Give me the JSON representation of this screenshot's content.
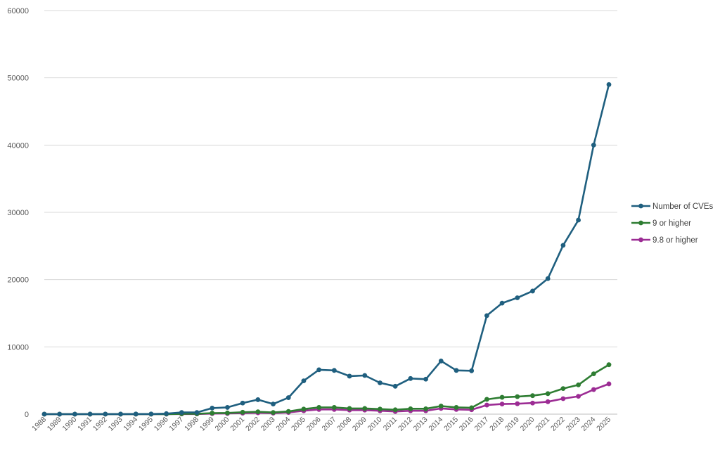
{
  "chart_data": {
    "type": "line",
    "title": "",
    "xlabel": "",
    "ylabel": "",
    "ylim": [
      0,
      60000
    ],
    "yticks": [
      0,
      10000,
      20000,
      30000,
      40000,
      50000,
      60000
    ],
    "grid": true,
    "legend_position": "right",
    "categories": [
      "1988",
      "1989",
      "1990",
      "1991",
      "1992",
      "1993",
      "1994",
      "1995",
      "1996",
      "1997",
      "1998",
      "1999",
      "2000",
      "2001",
      "2002",
      "2003",
      "2004",
      "2005",
      "2006",
      "2007",
      "2008",
      "2009",
      "2010",
      "2011",
      "2012",
      "2013",
      "2014",
      "2015",
      "2016",
      "2017",
      "2018",
      "2019",
      "2020",
      "2021",
      "2022",
      "2023",
      "2024",
      "2025"
    ],
    "series": [
      {
        "name": "Number of CVEs",
        "color": "#1f5f7f",
        "values": [
          2,
          3,
          3,
          11,
          13,
          13,
          25,
          25,
          75,
          250,
          250,
          900,
          1000,
          1650,
          2150,
          1500,
          2450,
          4950,
          6600,
          6500,
          5650,
          5750,
          4650,
          4150,
          5300,
          5200,
          7900,
          6500,
          6450,
          14650,
          16500,
          17300,
          18300,
          20150,
          25100,
          28850,
          40000,
          49000
        ]
      },
      {
        "name": "9 or higher",
        "color": "#2e7d32",
        "values": [
          0,
          0,
          0,
          2,
          2,
          2,
          5,
          5,
          15,
          50,
          50,
          150,
          180,
          280,
          350,
          250,
          400,
          750,
          1000,
          1000,
          850,
          850,
          750,
          650,
          800,
          800,
          1200,
          1000,
          950,
          2200,
          2500,
          2600,
          2750,
          3050,
          3800,
          4350,
          6000,
          7350
        ]
      },
      {
        "name": "9.8 or higher",
        "color": "#9c2c94",
        "values": [
          0,
          0,
          0,
          1,
          1,
          1,
          2,
          2,
          8,
          25,
          25,
          80,
          100,
          150,
          200,
          150,
          250,
          500,
          700,
          700,
          600,
          600,
          500,
          400,
          500,
          500,
          850,
          700,
          650,
          1350,
          1500,
          1550,
          1650,
          1850,
          2300,
          2650,
          3650,
          4500
        ]
      }
    ]
  }
}
